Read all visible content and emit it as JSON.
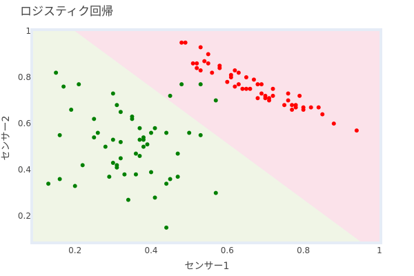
{
  "chart_data": {
    "type": "scatter",
    "title": "ロジスティク回帰",
    "xlabel": "センサー1",
    "ylabel": "センサー2",
    "xlim": [
      0.09,
      1.0
    ],
    "ylim": [
      0.09,
      1.0
    ],
    "xticks": [
      "0.2",
      "0.4",
      "0.6",
      "0.8",
      "1"
    ],
    "xtick_values": [
      0.2,
      0.4,
      0.6,
      0.8,
      1.0
    ],
    "yticks": [
      "0.2",
      "0.4",
      "0.6",
      "0.8",
      "1"
    ],
    "ytick_values": [
      0.2,
      0.4,
      0.6,
      0.8,
      1.0
    ],
    "grid": false,
    "decision_regions": {
      "boundary": [
        [
          0.2,
          1.0
        ],
        [
          0.95,
          0.09
        ]
      ],
      "class0_color": "#f0f5e6",
      "class1_color": "#fbe2ea",
      "frame_color": "#e5ecf6"
    },
    "series": [
      {
        "color": "#008000",
        "points": [
          [
            0.13,
            0.34
          ],
          [
            0.15,
            0.82
          ],
          [
            0.16,
            0.36
          ],
          [
            0.16,
            0.55
          ],
          [
            0.17,
            0.76
          ],
          [
            0.19,
            0.66
          ],
          [
            0.2,
            0.33
          ],
          [
            0.21,
            0.77
          ],
          [
            0.22,
            0.42
          ],
          [
            0.25,
            0.54
          ],
          [
            0.25,
            0.62
          ],
          [
            0.26,
            0.56
          ],
          [
            0.28,
            0.5
          ],
          [
            0.29,
            0.37
          ],
          [
            0.3,
            0.53
          ],
          [
            0.3,
            0.73
          ],
          [
            0.3,
            0.43
          ],
          [
            0.31,
            0.68
          ],
          [
            0.31,
            0.41
          ],
          [
            0.31,
            0.42
          ],
          [
            0.32,
            0.65
          ],
          [
            0.32,
            0.45
          ],
          [
            0.32,
            0.52
          ],
          [
            0.33,
            0.38
          ],
          [
            0.34,
            0.27
          ],
          [
            0.35,
            0.63
          ],
          [
            0.35,
            0.62
          ],
          [
            0.36,
            0.47
          ],
          [
            0.36,
            0.38
          ],
          [
            0.37,
            0.46
          ],
          [
            0.37,
            0.58
          ],
          [
            0.37,
            0.53
          ],
          [
            0.38,
            0.54
          ],
          [
            0.38,
            0.53
          ],
          [
            0.38,
            0.5
          ],
          [
            0.39,
            0.51
          ],
          [
            0.4,
            0.39
          ],
          [
            0.4,
            0.56
          ],
          [
            0.41,
            0.28
          ],
          [
            0.41,
            0.58
          ],
          [
            0.44,
            0.56
          ],
          [
            0.44,
            0.34
          ],
          [
            0.44,
            0.15
          ],
          [
            0.45,
            0.36
          ],
          [
            0.45,
            0.72
          ],
          [
            0.47,
            0.37
          ],
          [
            0.47,
            0.47
          ],
          [
            0.48,
            0.77
          ],
          [
            0.5,
            0.56
          ],
          [
            0.53,
            0.77
          ],
          [
            0.53,
            0.55
          ],
          [
            0.57,
            0.7
          ],
          [
            0.57,
            0.3
          ]
        ]
      },
      {
        "color": "#ff0000",
        "points": [
          [
            0.48,
            0.95
          ],
          [
            0.49,
            0.95
          ],
          [
            0.51,
            0.86
          ],
          [
            0.52,
            0.86
          ],
          [
            0.52,
            0.84
          ],
          [
            0.53,
            0.93
          ],
          [
            0.53,
            0.83
          ],
          [
            0.54,
            0.87
          ],
          [
            0.55,
            0.9
          ],
          [
            0.55,
            0.86
          ],
          [
            0.56,
            0.82
          ],
          [
            0.58,
            0.85
          ],
          [
            0.58,
            0.84
          ],
          [
            0.6,
            0.78
          ],
          [
            0.61,
            0.8
          ],
          [
            0.61,
            0.81
          ],
          [
            0.62,
            0.83
          ],
          [
            0.62,
            0.76
          ],
          [
            0.63,
            0.82
          ],
          [
            0.63,
            0.77
          ],
          [
            0.64,
            0.75
          ],
          [
            0.65,
            0.8
          ],
          [
            0.65,
            0.75
          ],
          [
            0.66,
            0.75
          ],
          [
            0.67,
            0.79
          ],
          [
            0.68,
            0.71
          ],
          [
            0.68,
            0.77
          ],
          [
            0.69,
            0.77
          ],
          [
            0.69,
            0.73
          ],
          [
            0.7,
            0.71
          ],
          [
            0.7,
            0.72
          ],
          [
            0.71,
            0.71
          ],
          [
            0.71,
            0.7
          ],
          [
            0.72,
            0.72
          ],
          [
            0.72,
            0.75
          ],
          [
            0.75,
            0.68
          ],
          [
            0.76,
            0.73
          ],
          [
            0.76,
            0.7
          ],
          [
            0.77,
            0.68
          ],
          [
            0.77,
            0.66
          ],
          [
            0.78,
            0.67
          ],
          [
            0.78,
            0.68
          ],
          [
            0.79,
            0.72
          ],
          [
            0.8,
            0.66
          ],
          [
            0.8,
            0.67
          ],
          [
            0.82,
            0.67
          ],
          [
            0.84,
            0.67
          ],
          [
            0.85,
            0.64
          ],
          [
            0.88,
            0.6
          ],
          [
            0.94,
            0.57
          ]
        ]
      }
    ]
  }
}
